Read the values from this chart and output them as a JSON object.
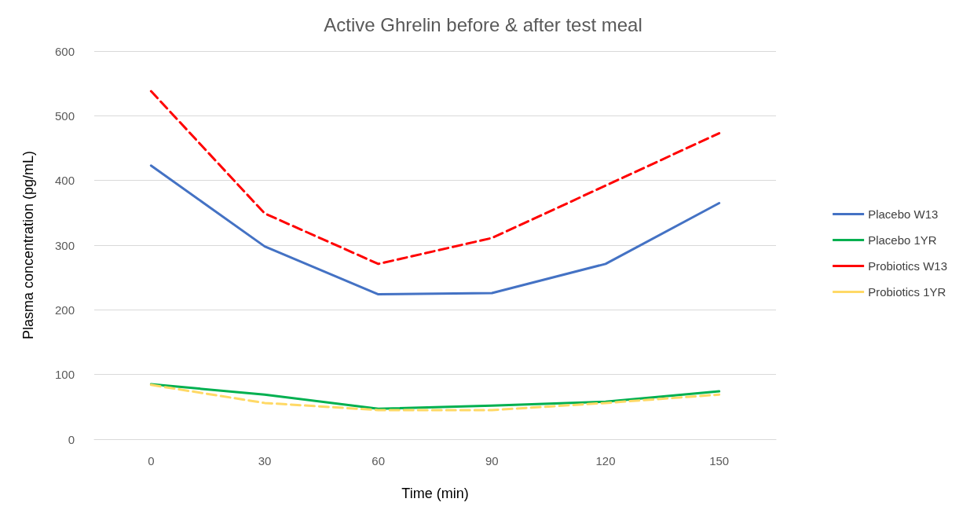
{
  "chart_data": {
    "type": "line",
    "title": "Active Ghrelin before & after test meal",
    "xlabel": "Time (min)",
    "ylabel": "Plasma concentration (pg/mL)",
    "categories": [
      "0",
      "30",
      "60",
      "90",
      "120",
      "150"
    ],
    "series": [
      {
        "name": "Placebo W13",
        "color": "#4472c4",
        "line_style": "solid",
        "values": [
          423,
          298,
          224,
          226,
          271,
          365
        ]
      },
      {
        "name": "Placebo 1YR",
        "color": "#00b050",
        "line_style": "solid",
        "values": [
          85,
          69,
          47,
          52,
          58,
          74
        ]
      },
      {
        "name": "Probiotics W13",
        "color": "#ff0000",
        "line_style": "dashed",
        "values": [
          538,
          349,
          271,
          311,
          392,
          473
        ]
      },
      {
        "name": "Probiotics 1YR",
        "color": "#ffd966",
        "line_style": "dashed",
        "values": [
          84,
          56,
          45,
          45,
          56,
          69
        ]
      }
    ],
    "ylim": [
      0,
      600
    ],
    "yticks": [
      0,
      100,
      200,
      300,
      400,
      500,
      600
    ],
    "grid": "y",
    "legend": "right",
    "marker": "none"
  }
}
